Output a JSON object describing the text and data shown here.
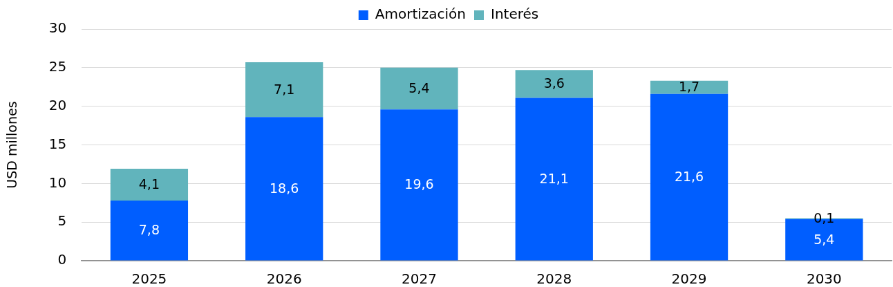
{
  "chart_data": {
    "type": "bar",
    "stacked": true,
    "categories": [
      "2025",
      "2026",
      "2027",
      "2028",
      "2029",
      "2030"
    ],
    "series": [
      {
        "name": "Amortización",
        "color": "#005eff",
        "values": [
          7.8,
          18.6,
          19.6,
          21.1,
          21.6,
          5.4
        ],
        "value_labels": [
          "7,8",
          "18,6",
          "19,6",
          "21,1",
          "21,6",
          "5,4"
        ]
      },
      {
        "name": "Interés",
        "color": "#61b4bc",
        "values": [
          4.1,
          7.1,
          5.4,
          3.6,
          1.7,
          0.1
        ],
        "value_labels": [
          "4,1",
          "7,1",
          "5,4",
          "3,6",
          "1,7",
          "0,1"
        ]
      }
    ],
    "ylabel": "USD millones",
    "ylim": [
      0,
      30
    ],
    "yticks": [
      0,
      5,
      10,
      15,
      20,
      25,
      30
    ],
    "grid": "y",
    "legend": "top"
  }
}
